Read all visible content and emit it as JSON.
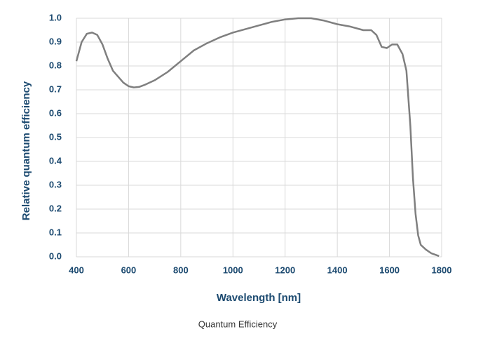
{
  "chart_data": {
    "type": "line",
    "x_label": "Wavelength [nm]",
    "y_label": "Relative quantum efficiency",
    "caption": "Quantum Efficiency",
    "x": [
      400,
      420,
      440,
      460,
      480,
      500,
      520,
      540,
      560,
      580,
      600,
      620,
      640,
      660,
      700,
      750,
      800,
      850,
      900,
      950,
      1000,
      1050,
      1100,
      1150,
      1200,
      1250,
      1300,
      1350,
      1400,
      1450,
      1500,
      1530,
      1550,
      1570,
      1590,
      1610,
      1630,
      1650,
      1665,
      1680,
      1690,
      1700,
      1710,
      1720,
      1740,
      1760,
      1790
    ],
    "series": [
      {
        "color": "#7f7f7f",
        "values": [
          0.82,
          0.9,
          0.935,
          0.94,
          0.93,
          0.89,
          0.83,
          0.78,
          0.755,
          0.73,
          0.715,
          0.71,
          0.712,
          0.72,
          0.74,
          0.775,
          0.82,
          0.865,
          0.895,
          0.92,
          0.94,
          0.955,
          0.97,
          0.985,
          0.995,
          1.0,
          1.0,
          0.99,
          0.975,
          0.965,
          0.95,
          0.95,
          0.93,
          0.88,
          0.875,
          0.89,
          0.89,
          0.85,
          0.78,
          0.55,
          0.33,
          0.18,
          0.09,
          0.05,
          0.03,
          0.015,
          0.003
        ]
      }
    ],
    "xlim": [
      400,
      1800
    ],
    "xticks": [
      400,
      600,
      800,
      1000,
      1200,
      1400,
      1600,
      1800
    ],
    "ylim": [
      0,
      1
    ],
    "yticks": [
      {
        "value": 0,
        "label": "0.0"
      },
      0.1,
      0.2,
      0.3,
      0.4,
      0.5,
      0.6,
      0.7,
      0.8,
      0.9,
      {
        "value": 1,
        "label": "1.0"
      }
    ],
    "grid": true
  }
}
